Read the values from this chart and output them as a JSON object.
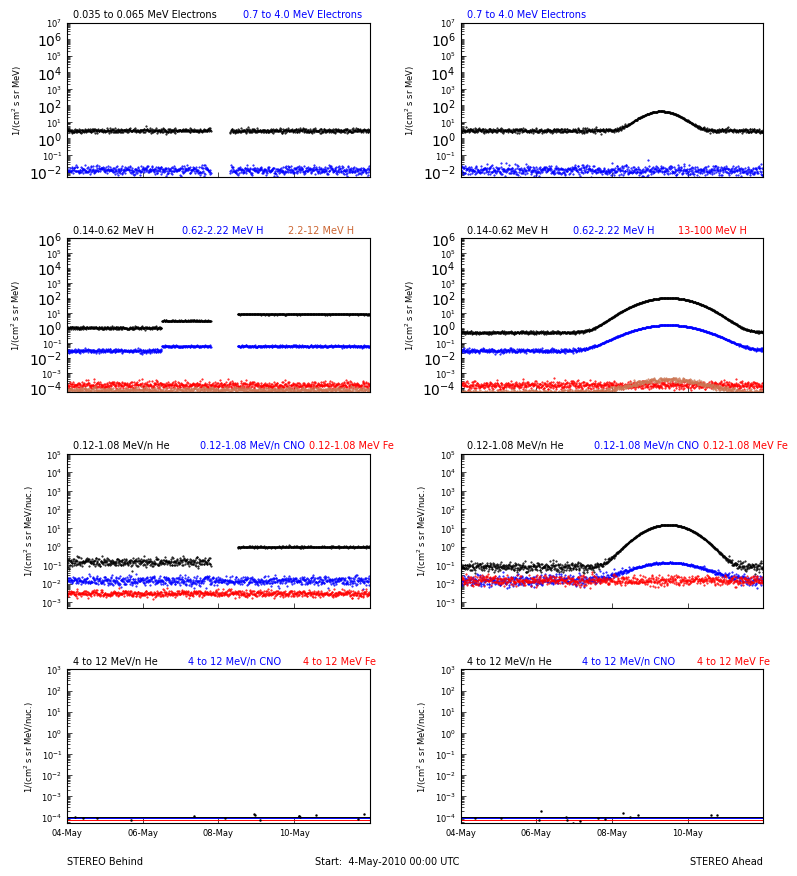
{
  "title_left": "STEREO Behind",
  "title_right": "STEREO Ahead",
  "start_label": "Start:  4-May-2010 00:00 UTC",
  "background_color": "#ffffff",
  "plot_bg": "#ffffff",
  "text_color": "#000000",
  "num_days": 8,
  "seed": 42
}
